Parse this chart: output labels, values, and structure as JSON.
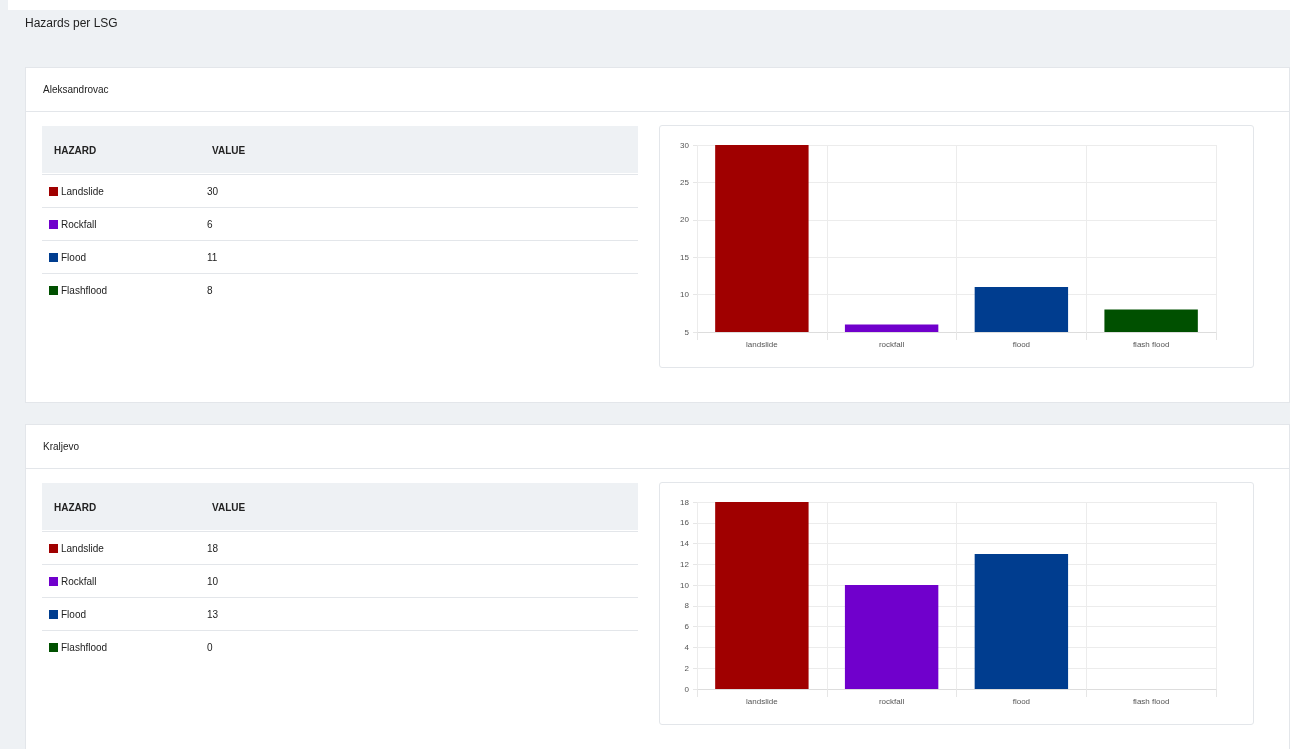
{
  "chart_data": [
    {
      "type": "other",
      "title": "Hazards per LSG",
      "subtitle": "Aleksandrovac",
      "categories": [
        "Landslide",
        "Rockfall",
        "Flood",
        "Flashflood"
      ],
      "values": [
        30,
        6,
        11,
        8
      ],
      "data_labels": true,
      "colors": [
        "#a00000",
        "#7000cc",
        "#003d8f",
        "#005000"
      ],
      "annotations": [
        "HAZARD",
        "VALUE"
      ]
    },
    {
      "type": "bar",
      "categories": [
        "landslide",
        "rockfall",
        "flood",
        "flash flood"
      ],
      "values": [
        30,
        6,
        11,
        8
      ],
      "colors": [
        "#a00000",
        "#7000cc",
        "#003d8f",
        "#005000"
      ],
      "ylim": [
        5,
        30
      ],
      "yticks": [
        5,
        10,
        15,
        20,
        25,
        30
      ],
      "grid": true
    },
    {
      "type": "other",
      "subtitle": "Kraljevo",
      "categories": [
        "Landslide",
        "Rockfall",
        "Flood",
        "Flashflood"
      ],
      "values": [
        18,
        10,
        13,
        0
      ],
      "data_labels": true,
      "colors": [
        "#a00000",
        "#7000cc",
        "#003d8f",
        "#005000"
      ],
      "annotations": [
        "HAZARD",
        "VALUE"
      ]
    },
    {
      "type": "bar",
      "categories": [
        "landslide",
        "rockfall",
        "flood",
        "flash flood"
      ],
      "values": [
        18,
        10,
        13,
        0
      ],
      "colors": [
        "#a00000",
        "#7000cc",
        "#003d8f",
        "#005000"
      ],
      "ylim": [
        0,
        18
      ],
      "yticks": [
        0,
        2,
        4,
        6,
        8,
        10,
        12,
        14,
        16,
        18
      ],
      "grid": true
    }
  ]
}
